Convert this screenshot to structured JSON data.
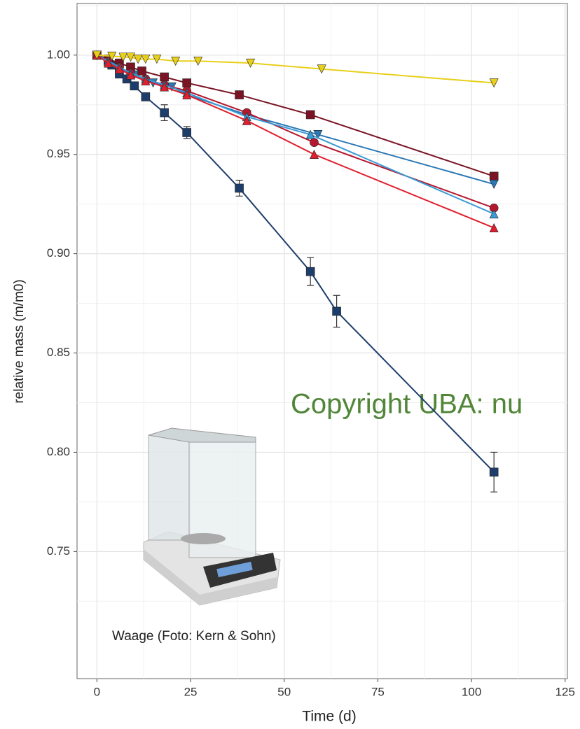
{
  "chart_data": {
    "type": "line",
    "x_label": "Time (d)",
    "y_label": "relative mass (m/m0)",
    "xlim": [
      -5.3,
      125.6
    ],
    "ylim": [
      0.686,
      1.026
    ],
    "xticks": [
      0,
      25,
      50,
      75,
      100,
      125
    ],
    "yticks": [
      {
        "value": 1,
        "label": "1.00"
      },
      0.95,
      {
        "value": 0.9,
        "label": "0.90"
      },
      0.85,
      {
        "value": 0.8,
        "label": "0.80"
      },
      0.75
    ],
    "grid": true,
    "annotations": [
      "Copyright UBA: nu",
      "Waage (Foto: Kern & Sohn)"
    ],
    "series": [
      {
        "color": "#1d3d6b",
        "marker": "square",
        "x": [
          0,
          3,
          4,
          6,
          8,
          10,
          13,
          18,
          24,
          38,
          57,
          64,
          106
        ],
        "values": [
          1.0,
          0.997,
          0.995,
          0.9905,
          0.988,
          0.9845,
          0.979,
          0.971,
          0.961,
          0.933,
          0.891,
          0.871,
          0.79
        ],
        "errors": [
          0,
          0.001,
          0.001,
          0.001,
          0.001,
          0.001,
          0.001,
          0.004,
          0.003,
          0.004,
          0.007,
          0.008,
          0.01
        ]
      },
      {
        "color": "#7a1424",
        "marker": "square",
        "x": [
          0,
          3,
          6,
          9,
          12,
          18,
          24,
          38,
          57,
          106
        ],
        "values": [
          1.0,
          0.998,
          0.996,
          0.994,
          0.992,
          0.989,
          0.986,
          0.98,
          0.97,
          0.939
        ]
      },
      {
        "color": "#2b78b5",
        "marker": "triangle-down",
        "x": [
          0,
          3,
          6,
          10,
          15,
          20,
          24,
          40,
          59,
          106
        ],
        "values": [
          1.0,
          0.996,
          0.993,
          0.99,
          0.986,
          0.984,
          0.98,
          0.97,
          0.96,
          0.935
        ]
      },
      {
        "color": "#b5182e",
        "marker": "circle",
        "x": [
          0,
          3,
          6,
          9,
          13,
          18,
          24,
          40,
          58,
          106
        ],
        "values": [
          1.0,
          0.997,
          0.994,
          0.991,
          0.988,
          0.985,
          0.982,
          0.971,
          0.956,
          0.923
        ]
      },
      {
        "color": "#3a9bd6",
        "marker": "triangle",
        "x": [
          0,
          3,
          6,
          9,
          13,
          18,
          24,
          40,
          57,
          106
        ],
        "values": [
          1.0,
          0.997,
          0.994,
          0.991,
          0.988,
          0.985,
          0.981,
          0.969,
          0.96,
          0.92
        ]
      },
      {
        "color": "#e0202e",
        "marker": "triangle",
        "x": [
          0,
          3,
          6,
          9,
          13,
          18,
          24,
          40,
          58,
          106
        ],
        "values": [
          1.0,
          0.996,
          0.993,
          0.99,
          0.987,
          0.984,
          0.98,
          0.967,
          0.95,
          0.913
        ]
      },
      {
        "color": "#e8cf1a",
        "marker": "triangle-down",
        "x": [
          0,
          4,
          7,
          9,
          11,
          13,
          16,
          21,
          27,
          41,
          60,
          106
        ],
        "values": [
          1.0,
          0.9995,
          0.999,
          0.999,
          0.998,
          0.998,
          0.998,
          0.997,
          0.997,
          0.996,
          0.993,
          0.986
        ]
      }
    ]
  }
}
